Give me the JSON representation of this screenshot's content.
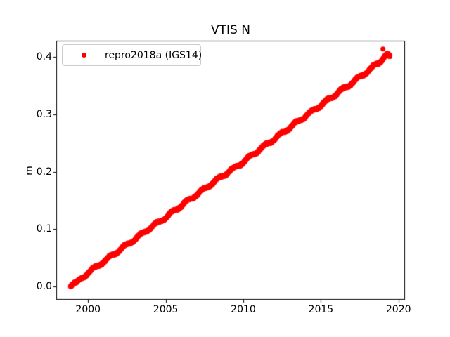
{
  "figure": {
    "background": "#ffffff",
    "text_color": "#000000"
  },
  "chart_data": {
    "type": "scatter",
    "title": "VTIS N",
    "xlabel": "",
    "ylabel": "m",
    "xlim": [
      1997.95,
      2020.42
    ],
    "ylim": [
      -0.0235,
      0.4285
    ],
    "xticks": [
      2000,
      2005,
      2010,
      2015,
      2020
    ],
    "xtick_labels": [
      "2000",
      "2005",
      "2010",
      "2015",
      "2020"
    ],
    "yticks": [
      0.0,
      0.1,
      0.2,
      0.3,
      0.4
    ],
    "ytick_labels": [
      "0.0",
      "0.1",
      "0.2",
      "0.3",
      "0.4"
    ],
    "grid": false,
    "legend": {
      "position": "upper-left",
      "border_color": "#cccccc",
      "entries": [
        {
          "label": "repro2018a (IGS14)",
          "color": "#ff0000",
          "marker": "dot"
        }
      ]
    },
    "series": [
      {
        "name": "repro2018a (IGS14)",
        "color": "#ff0000",
        "marker": "dot",
        "marker_radius_px": 3.5,
        "points_per_year": 100,
        "x_start": 1998.87,
        "x_end": 2019.45,
        "trend_rate_m_per_yr": 0.0196,
        "seasonal_amplitude_m": 0.0022,
        "noise_amplitude_m": 0.0012,
        "trend_anchors": [
          [
            1998.87,
            0.002
          ],
          [
            1999.1,
            0.007
          ],
          [
            1999.25,
            0.005
          ],
          [
            2000,
            0.024
          ],
          [
            2001,
            0.043
          ],
          [
            2002,
            0.063
          ],
          [
            2003,
            0.082
          ],
          [
            2004,
            0.102
          ],
          [
            2005,
            0.12
          ],
          [
            2006,
            0.141
          ],
          [
            2007,
            0.16
          ],
          [
            2008,
            0.18
          ],
          [
            2009,
            0.199
          ],
          [
            2010,
            0.217
          ],
          [
            2011,
            0.238
          ],
          [
            2012,
            0.257
          ],
          [
            2013,
            0.277
          ],
          [
            2014,
            0.297
          ],
          [
            2015,
            0.316
          ],
          [
            2016,
            0.336
          ],
          [
            2017,
            0.355
          ],
          [
            2018,
            0.375
          ],
          [
            2018.8,
            0.392
          ],
          [
            2019.1,
            0.401
          ],
          [
            2019.25,
            0.404
          ],
          [
            2019.45,
            0.4
          ]
        ],
        "outliers": [
          [
            2019.0,
            0.414
          ]
        ]
      }
    ]
  }
}
